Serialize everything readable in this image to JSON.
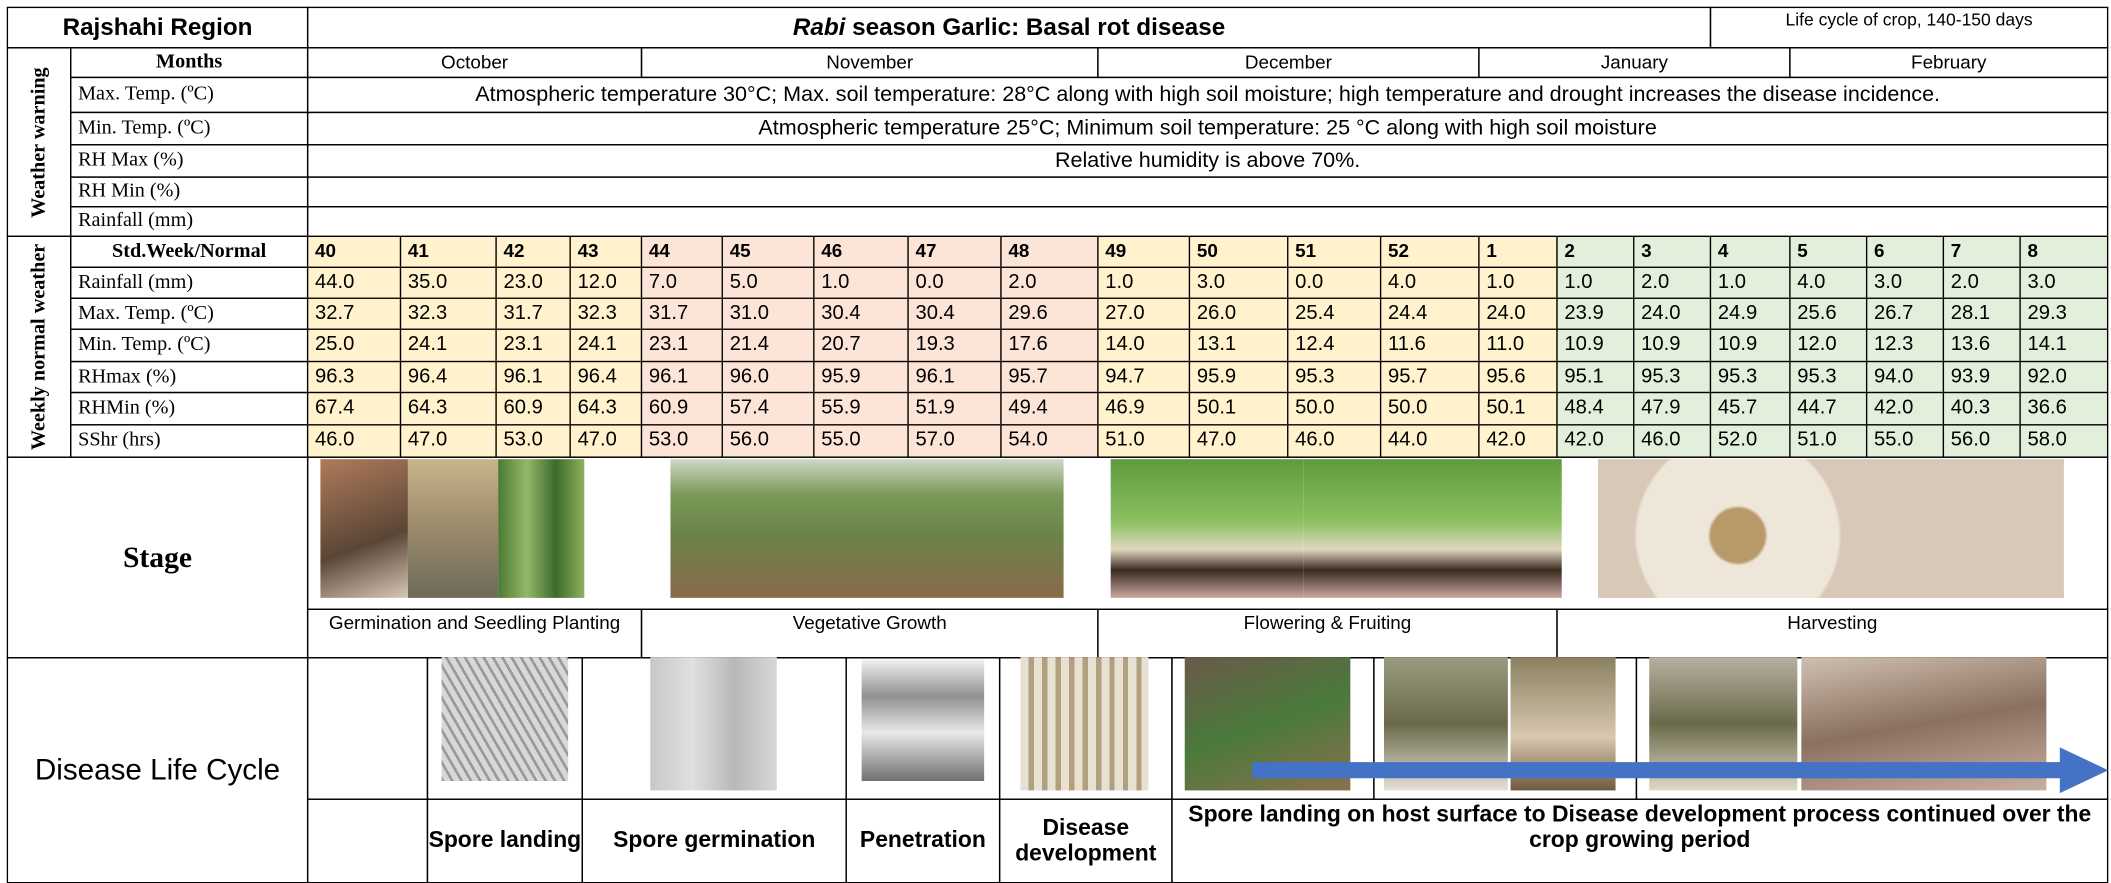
{
  "header": {
    "region": "Rajshahi Region",
    "title_italic": "Rabi",
    "title": "season Garlic: Basal rot disease",
    "life_cycle": "Life cycle of crop, 140-150 days"
  },
  "weather_warning": {
    "label": "Weather warning",
    "months_label": "Months",
    "months": [
      "October",
      "November",
      "December",
      "January",
      "February"
    ],
    "rows": [
      {
        "label": "Max. Temp. (ºC)",
        "text": "Atmospheric temperature 30°C; Max. soil temperature: 28°C along with high soil moisture; high temperature and drought increases the disease incidence."
      },
      {
        "label": "Min. Temp. (ºC)",
        "text": "Atmospheric temperature 25°C; Minimum soil temperature: 25 °C along with high soil moisture"
      },
      {
        "label": "RH Max (%)",
        "text": "Relative humidity is above 70%."
      },
      {
        "label": "RH Min (%)"
      },
      {
        "label": "Rainfall (mm)"
      }
    ]
  },
  "weekly": {
    "label": "Weekly normal weather",
    "header_label": "Std.Week/Normal",
    "weeks": [
      40,
      41,
      42,
      43,
      44,
      45,
      46,
      47,
      48,
      49,
      50,
      51,
      52,
      1,
      2,
      3,
      4,
      5,
      6,
      7,
      8
    ],
    "rows": [
      {
        "label": "Rainfall (mm)",
        "values": [
          "44.0",
          "35.0",
          "23.0",
          "12.0",
          "7.0",
          "5.0",
          "1.0",
          "0.0",
          "2.0",
          "1.0",
          "3.0",
          "0.0",
          "4.0",
          "1.0",
          "1.0",
          "2.0",
          "1.0",
          "4.0",
          "3.0",
          "2.0",
          "3.0"
        ]
      },
      {
        "label": "Max. Temp. (ºC)",
        "values": [
          "32.7",
          "32.3",
          "31.7",
          "32.3",
          "31.7",
          "31.0",
          "30.4",
          "30.4",
          "29.6",
          "27.0",
          "26.0",
          "25.4",
          "24.4",
          "24.0",
          "23.9",
          "24.0",
          "24.9",
          "25.6",
          "26.7",
          "28.1",
          "29.3"
        ]
      },
      {
        "label": "Min. Temp. (ºC)",
        "values": [
          "25.0",
          "24.1",
          "23.1",
          "24.1",
          "23.1",
          "21.4",
          "20.7",
          "19.3",
          "17.6",
          "14.0",
          "13.1",
          "12.4",
          "11.6",
          "11.0",
          "10.9",
          "10.9",
          "10.9",
          "12.0",
          "12.3",
          "13.6",
          "14.1"
        ]
      },
      {
        "label": "RHmax (%)",
        "values": [
          "96.3",
          "96.4",
          "96.1",
          "96.4",
          "96.1",
          "96.0",
          "95.9",
          "96.1",
          "95.7",
          "94.7",
          "95.9",
          "95.3",
          "95.7",
          "95.6",
          "95.1",
          "95.3",
          "95.3",
          "95.3",
          "94.0",
          "93.9",
          "92.0"
        ]
      },
      {
        "label": "RHMin (%)",
        "values": [
          "67.4",
          "64.3",
          "60.9",
          "64.3",
          "60.9",
          "57.4",
          "55.9",
          "51.9",
          "49.4",
          "46.9",
          "50.1",
          "50.0",
          "50.0",
          "50.1",
          "48.4",
          "47.9",
          "45.7",
          "44.7",
          "42.0",
          "40.3",
          "36.6"
        ]
      },
      {
        "label": "SShr (hrs)",
        "values": [
          "46.0",
          "47.0",
          "53.0",
          "47.0",
          "53.0",
          "56.0",
          "55.0",
          "57.0",
          "54.0",
          "51.0",
          "47.0",
          "46.0",
          "44.0",
          "42.0",
          "42.0",
          "46.0",
          "52.0",
          "51.0",
          "55.0",
          "56.0",
          "58.0"
        ]
      }
    ]
  },
  "stage": {
    "label": "Stage",
    "stages": [
      "Germination and Seedling Planting",
      "Vegetative Growth",
      "Flowering & Fruiting",
      "Harvesting"
    ]
  },
  "disease": {
    "label": "Disease Life Cycle",
    "steps": [
      "Spore landing",
      "Spore germination",
      "Penetration",
      "Disease development"
    ],
    "continuation": "Spore landing on host surface to Disease development process continued over the crop growing period"
  }
}
